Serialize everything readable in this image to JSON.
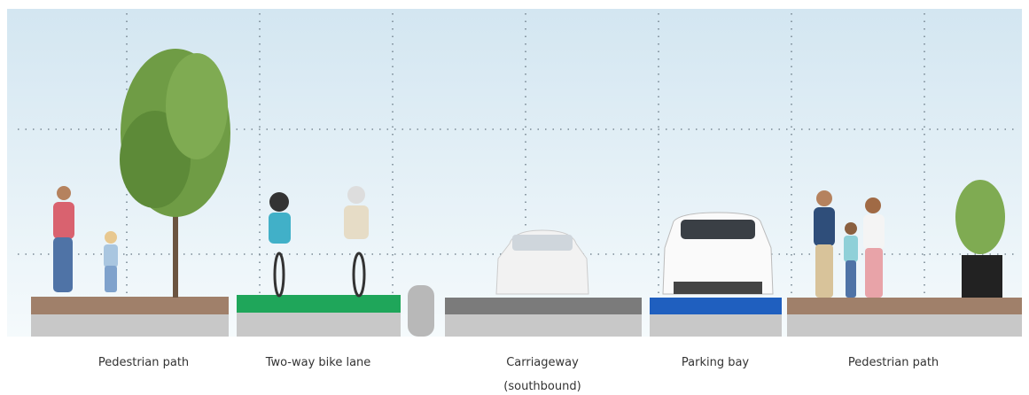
{
  "segments": [
    {
      "label": [
        "Pedestrian path"
      ]
    },
    {
      "label": [
        "Two-way bike lane"
      ]
    },
    {
      "label": [
        "Carriageway",
        "(southbound)"
      ]
    },
    {
      "label": [
        "Parking bay"
      ]
    },
    {
      "label": [
        "Pedestrian path"
      ]
    }
  ]
}
